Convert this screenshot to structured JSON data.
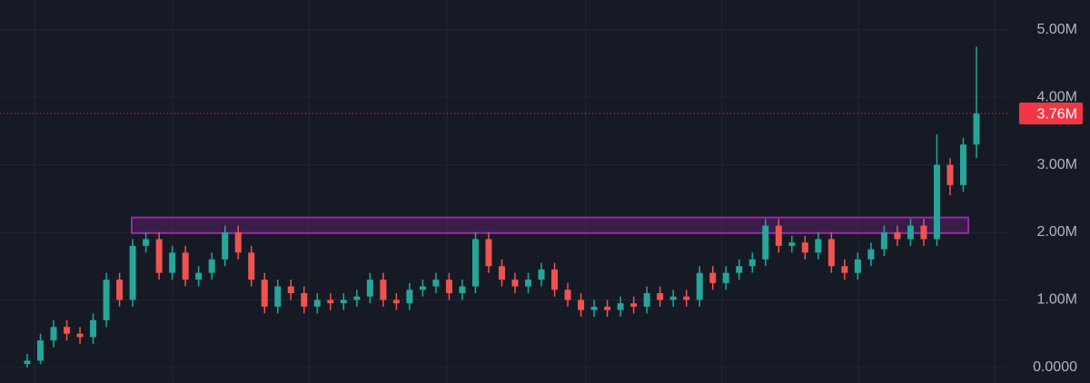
{
  "chart_data": {
    "type": "candlestick",
    "open": [
      0.05,
      0.1,
      0.4,
      0.6,
      0.5,
      0.45,
      0.7,
      1.3,
      1.0,
      1.8,
      1.9,
      1.4,
      1.7,
      1.3,
      1.4,
      1.6,
      2.0,
      1.7,
      1.3,
      0.9,
      1.2,
      1.1,
      0.9,
      1.0,
      0.95,
      1.0,
      1.05,
      1.3,
      1.0,
      0.95,
      1.15,
      1.2,
      1.3,
      1.1,
      1.2,
      1.9,
      1.5,
      1.3,
      1.2,
      1.3,
      1.45,
      1.15,
      1.0,
      0.85,
      0.9,
      0.85,
      0.95,
      0.9,
      1.1,
      1.0,
      1.05,
      1.0,
      1.4,
      1.25,
      1.4,
      1.5,
      1.6,
      2.1,
      1.8,
      1.85,
      1.7,
      1.9,
      1.5,
      1.4,
      1.6,
      1.75,
      2.0,
      1.9,
      2.1,
      1.9,
      3.0,
      2.7,
      3.3
    ],
    "high": [
      0.2,
      0.5,
      0.7,
      0.7,
      0.6,
      0.8,
      1.4,
      1.4,
      1.9,
      2.0,
      2.0,
      1.8,
      1.8,
      1.5,
      1.7,
      2.1,
      2.1,
      1.8,
      1.4,
      1.3,
      1.3,
      1.2,
      1.1,
      1.1,
      1.1,
      1.15,
      1.4,
      1.4,
      1.1,
      1.25,
      1.3,
      1.4,
      1.4,
      1.3,
      2.0,
      2.0,
      1.6,
      1.4,
      1.4,
      1.55,
      1.55,
      1.25,
      1.1,
      1.0,
      1.0,
      1.05,
      1.05,
      1.2,
      1.2,
      1.15,
      1.15,
      1.5,
      1.5,
      1.5,
      1.6,
      1.7,
      2.2,
      2.2,
      1.95,
      1.95,
      2.0,
      2.0,
      1.6,
      1.7,
      1.85,
      2.1,
      2.1,
      2.2,
      2.2,
      3.45,
      3.1,
      3.4,
      4.75
    ],
    "low": [
      0.0,
      0.05,
      0.3,
      0.4,
      0.35,
      0.35,
      0.6,
      0.9,
      0.9,
      1.7,
      1.3,
      1.3,
      1.2,
      1.2,
      1.3,
      1.5,
      1.6,
      1.2,
      0.8,
      0.8,
      1.0,
      0.8,
      0.8,
      0.85,
      0.85,
      0.9,
      0.95,
      0.9,
      0.85,
      0.85,
      1.05,
      1.1,
      1.0,
      1.0,
      1.1,
      1.4,
      1.2,
      1.1,
      1.1,
      1.2,
      1.05,
      0.9,
      0.75,
      0.75,
      0.75,
      0.75,
      0.8,
      0.8,
      0.9,
      0.9,
      0.9,
      0.9,
      1.15,
      1.15,
      1.3,
      1.4,
      1.5,
      1.7,
      1.7,
      1.6,
      1.6,
      1.4,
      1.3,
      1.3,
      1.5,
      1.65,
      1.8,
      1.8,
      1.8,
      1.8,
      2.55,
      2.6,
      3.1
    ],
    "close": [
      0.1,
      0.4,
      0.6,
      0.5,
      0.45,
      0.7,
      1.3,
      1.0,
      1.8,
      1.9,
      1.4,
      1.7,
      1.3,
      1.4,
      1.6,
      2.0,
      1.7,
      1.3,
      0.9,
      1.2,
      1.1,
      0.9,
      1.0,
      0.95,
      1.0,
      1.05,
      1.3,
      1.0,
      0.95,
      1.15,
      1.2,
      1.3,
      1.1,
      1.2,
      1.9,
      1.5,
      1.3,
      1.2,
      1.3,
      1.45,
      1.15,
      1.0,
      0.85,
      0.9,
      0.85,
      0.95,
      0.9,
      1.1,
      1.0,
      1.05,
      1.0,
      1.4,
      1.25,
      1.4,
      1.5,
      1.6,
      2.1,
      1.8,
      1.85,
      1.7,
      1.9,
      1.5,
      1.4,
      1.6,
      1.75,
      2.0,
      1.9,
      2.1,
      1.9,
      3.0,
      2.7,
      3.3,
      3.76
    ],
    "up_color": "#26a69a",
    "down_color": "#ef5350",
    "ylim": [
      -0.23,
      5.44
    ],
    "yticks": [
      {
        "value": 0,
        "label": "0.0000"
      },
      {
        "value": 1,
        "label": "1.00M"
      },
      {
        "value": 2,
        "label": "2.00M"
      },
      {
        "value": 3,
        "label": "3.00M"
      },
      {
        "value": 4,
        "label": "4.00M"
      },
      {
        "value": 5,
        "label": "5.00M"
      }
    ],
    "grid": true,
    "last_price": {
      "value": 3.76,
      "label": "3.76M",
      "color": "#f23645"
    },
    "zone": {
      "low": 1.99,
      "high": 2.22,
      "color": "#9c27b0"
    }
  }
}
